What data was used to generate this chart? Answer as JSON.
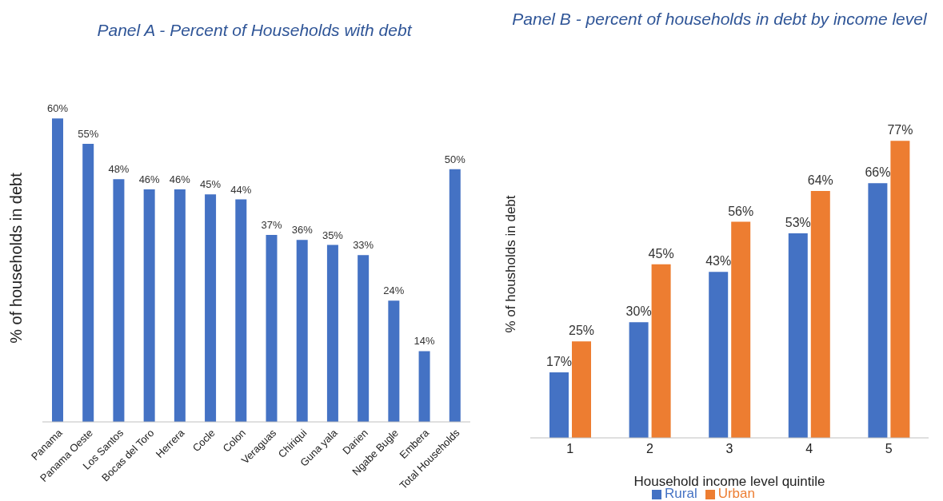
{
  "chart_data": [
    {
      "type": "bar",
      "title": "Panel A - Percent of Households with debt",
      "ylabel": "% of households in debt",
      "categories": [
        "Panama",
        "Panama Oeste",
        "Los Santos",
        "Bocas del Toro",
        "Herrera",
        "Cocle",
        "Colon",
        "Veraguas",
        "Chiriqui",
        "Guna yala",
        "Darien",
        "Ngabe Bugle",
        "Embera",
        "Total Households"
      ],
      "values": [
        60,
        55,
        48,
        46,
        46,
        45,
        44,
        37,
        36,
        35,
        33,
        24,
        14,
        50
      ],
      "color": "#4472c4",
      "value_labels": [
        "60%",
        "55%",
        "48%",
        "46%",
        "46%",
        "45%",
        "44%",
        "37%",
        "36%",
        "35%",
        "33%",
        "24%",
        "14%",
        "50%"
      ]
    },
    {
      "type": "bar",
      "title": "Panel B - percent of households in debt by income level",
      "xlabel": "Household income level quintile",
      "ylabel": "% of housholds in debt",
      "categories": [
        "1",
        "2",
        "3",
        "4",
        "5"
      ],
      "legend": "bottom",
      "series": [
        {
          "name": "Rural",
          "color": "#4472c4",
          "values": [
            17,
            30,
            43,
            53,
            66
          ],
          "value_labels": [
            "17%",
            "30%",
            "43%",
            "53%",
            "66%"
          ]
        },
        {
          "name": "Urban",
          "color": "#ed7d31",
          "values": [
            25,
            45,
            56,
            64,
            77
          ],
          "value_labels": [
            "25%",
            "45%",
            "56%",
            "64%",
            "77%"
          ]
        }
      ]
    }
  ]
}
